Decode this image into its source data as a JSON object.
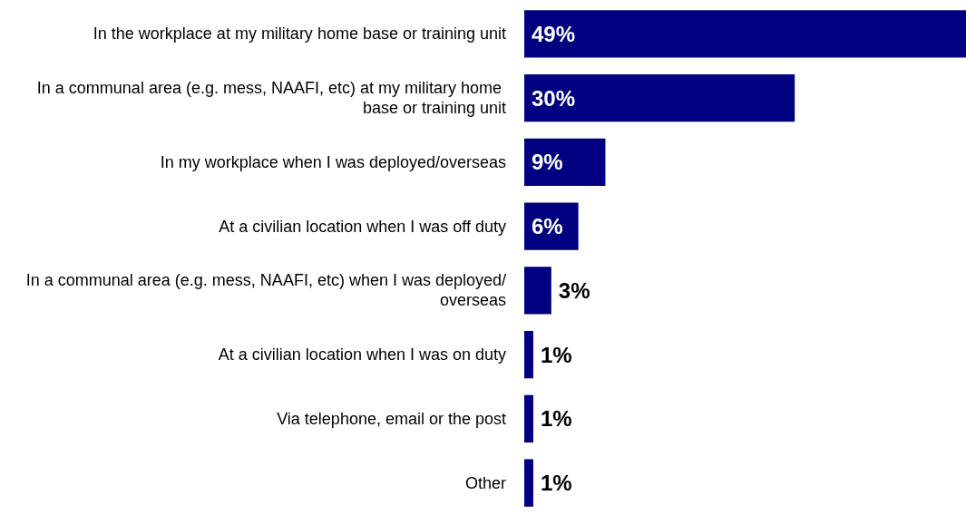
{
  "chart_data": {
    "type": "bar",
    "orientation": "horizontal",
    "categories": [
      "In the workplace at my military home base or training unit",
      "In a communal area (e.g. mess, NAAFI, etc) at my military home base or training unit",
      "In my workplace when I was deployed/overseas",
      "At a civilian location when I was off duty",
      "In a communal area (e.g. mess, NAAFI, etc) when I was deployed/overseas",
      "At a civilian location when I was on duty",
      "Via telephone, email or the post",
      "Other"
    ],
    "values": [
      49,
      30,
      9,
      6,
      3,
      1,
      1,
      1
    ],
    "value_labels": [
      "49%",
      "30%",
      "9%",
      "6%",
      "3%",
      "1%",
      "1%",
      "1%"
    ],
    "color": "#000080"
  }
}
